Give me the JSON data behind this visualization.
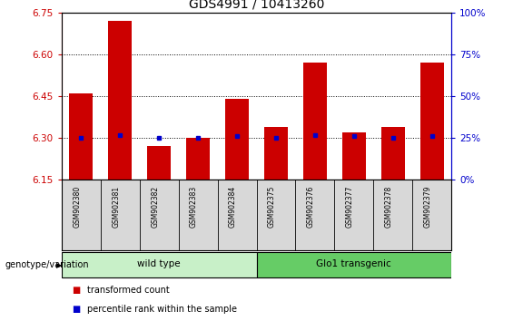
{
  "title": "GDS4991 / 10413260",
  "samples": [
    "GSM902380",
    "GSM902381",
    "GSM902382",
    "GSM902383",
    "GSM902384",
    "GSM902375",
    "GSM902376",
    "GSM902377",
    "GSM902378",
    "GSM902379"
  ],
  "transformed_count": [
    6.46,
    6.72,
    6.27,
    6.3,
    6.44,
    6.34,
    6.57,
    6.32,
    6.34,
    6.57
  ],
  "percentile_rank": [
    25,
    27,
    25,
    25,
    26,
    25,
    27,
    26,
    25,
    26
  ],
  "ylim": [
    6.15,
    6.75
  ],
  "yticks": [
    6.15,
    6.3,
    6.45,
    6.6,
    6.75
  ],
  "right_ylim": [
    0,
    100
  ],
  "right_yticks": [
    0,
    25,
    50,
    75,
    100
  ],
  "bar_color": "#cc0000",
  "dot_color": "#0000cc",
  "bar_bottom": 6.15,
  "groups": [
    {
      "label": "wild type",
      "start": 0,
      "end": 4,
      "color": "#c8f0c8"
    },
    {
      "label": "Glo1 transgenic",
      "start": 5,
      "end": 9,
      "color": "#66cc66"
    }
  ],
  "group_label": "genotype/variation",
  "legend_items": [
    {
      "color": "#cc0000",
      "label": "transformed count"
    },
    {
      "color": "#0000cc",
      "label": "percentile rank within the sample"
    }
  ],
  "left_axis_color": "#cc0000",
  "right_axis_color": "#0000cc",
  "grid_color": "black",
  "sample_bg_color": "#d8d8d8",
  "plot_bg_color": "#ffffff",
  "title_fontsize": 10
}
